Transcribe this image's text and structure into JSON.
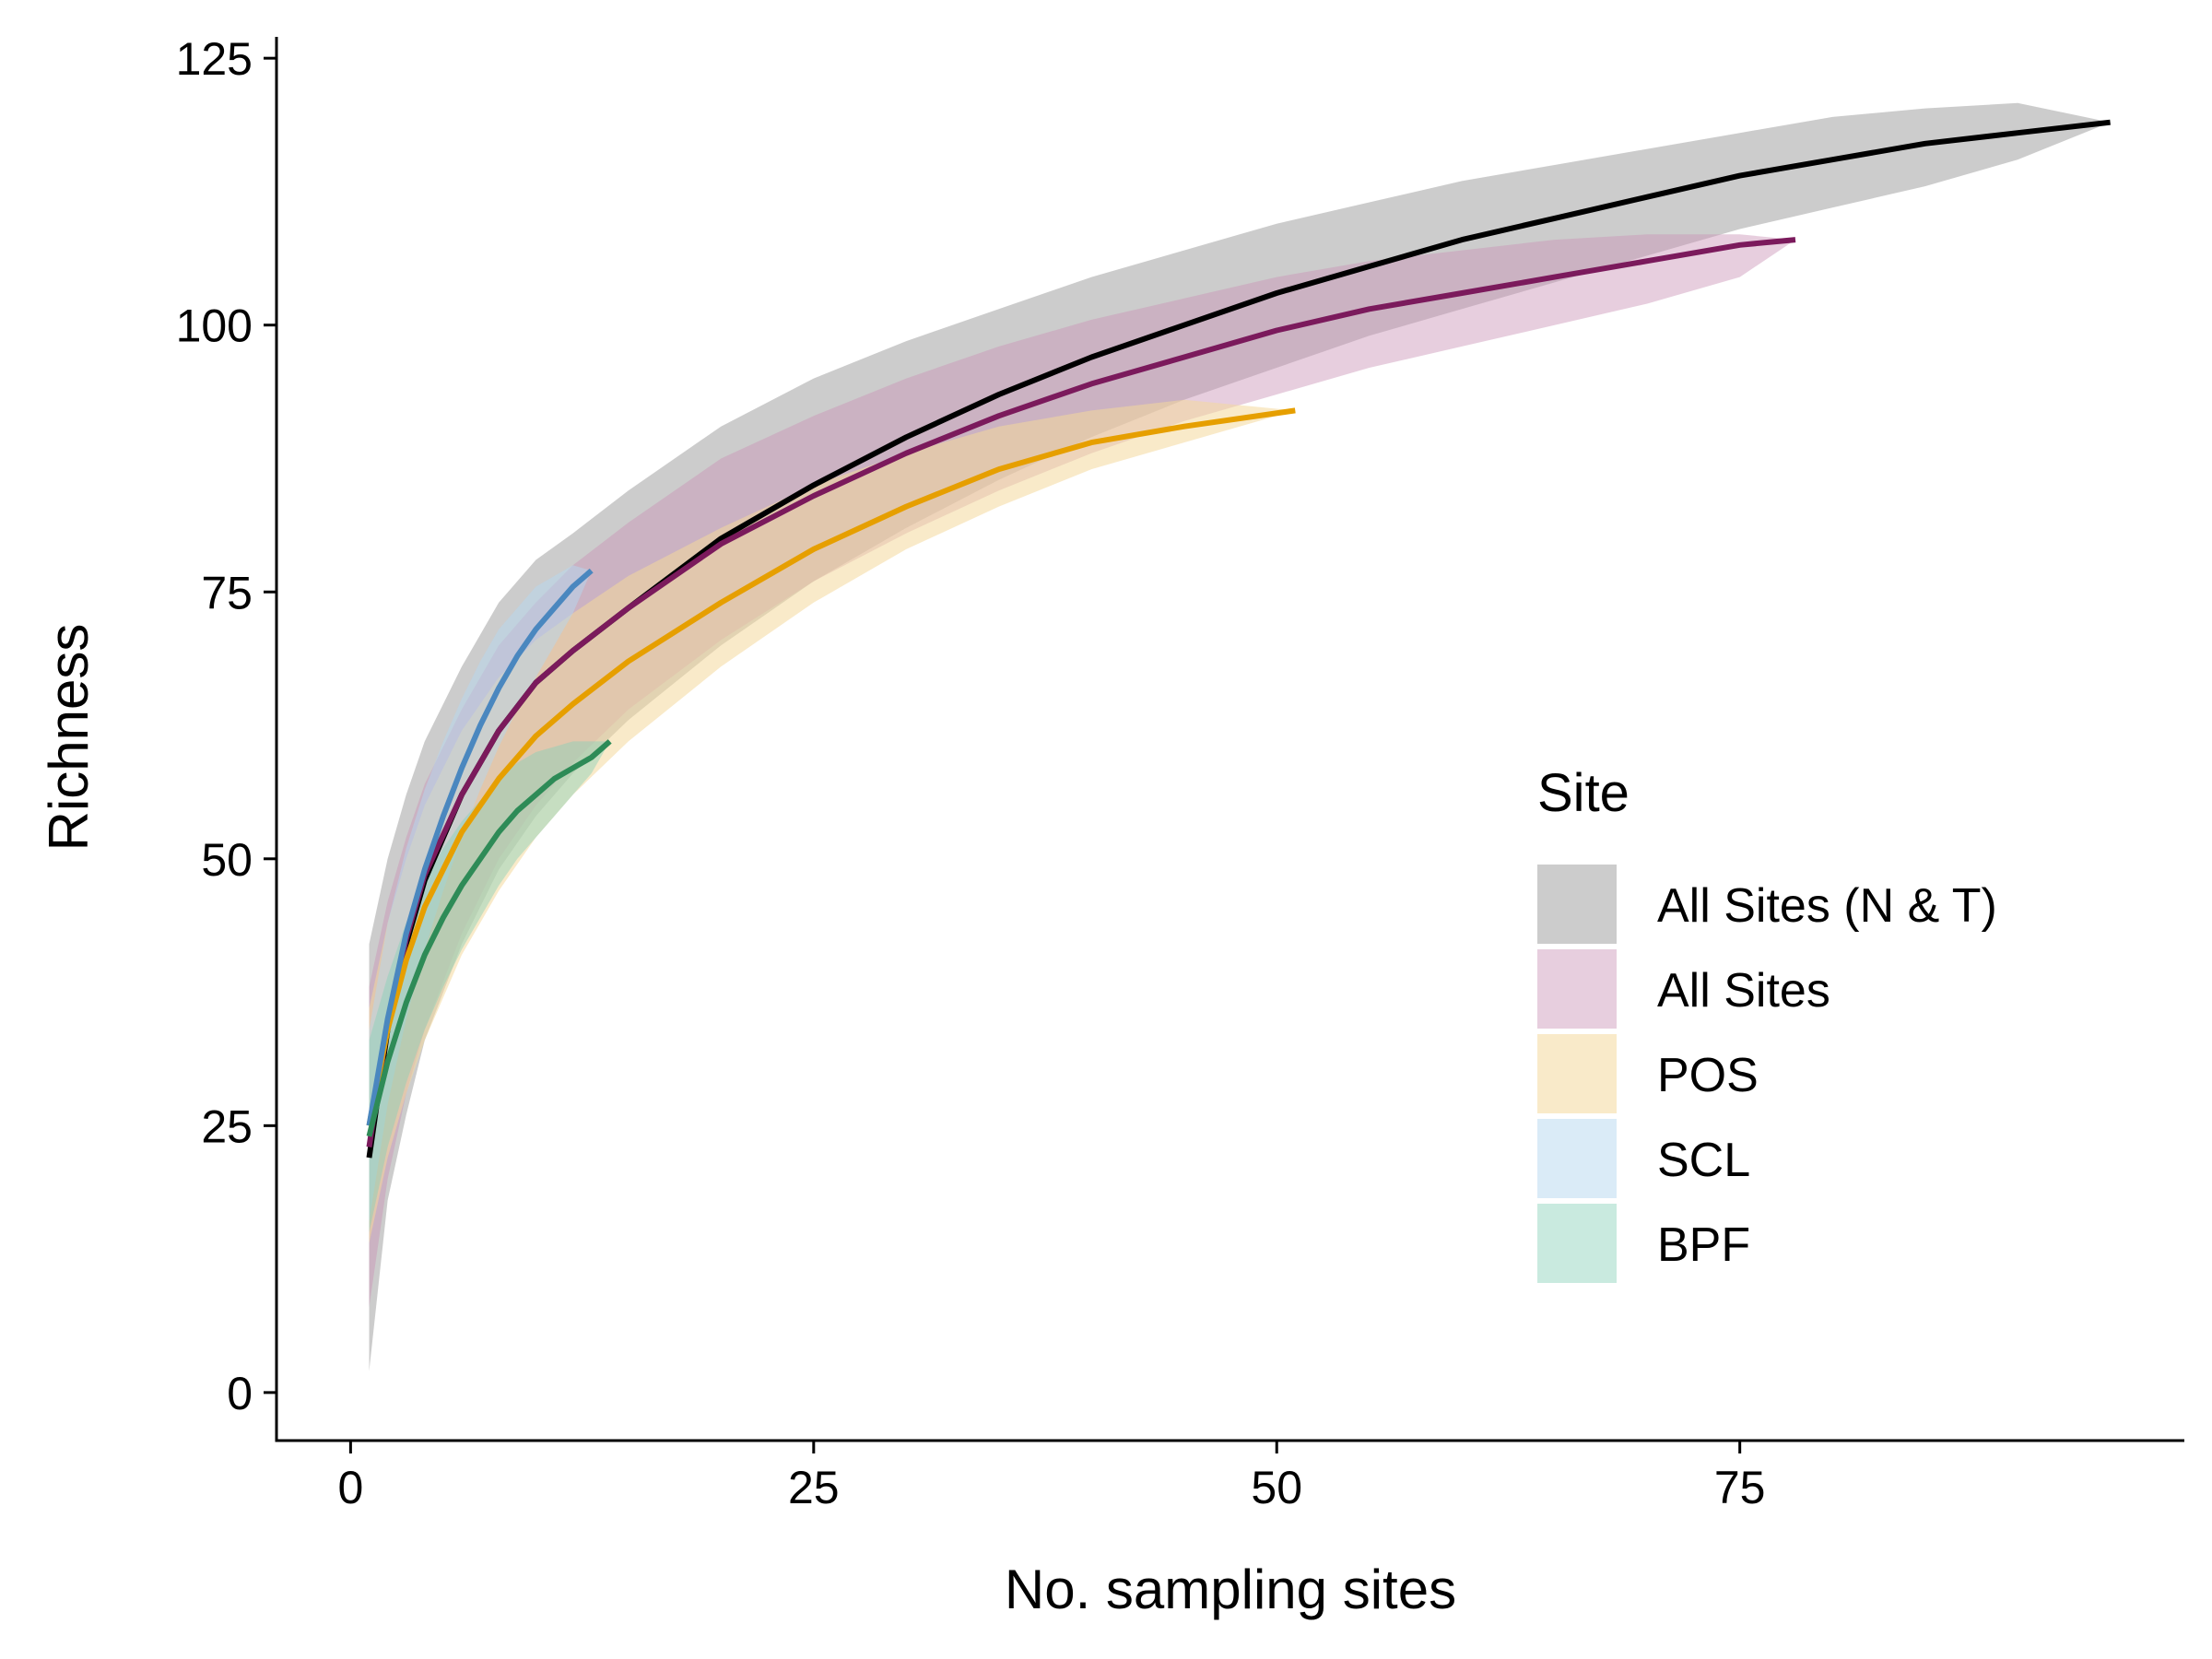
{
  "chart_data": {
    "type": "line",
    "title": "",
    "xlabel": "No. sampling sites",
    "ylabel": "Richness",
    "xlim": [
      -4,
      99
    ],
    "ylim": [
      -4.5,
      127
    ],
    "x_ticks": [
      0,
      25,
      50,
      75
    ],
    "y_ticks": [
      0,
      25,
      50,
      75,
      100,
      125
    ],
    "grid": false,
    "legend": {
      "title": "Site",
      "placement": "right"
    },
    "series": [
      {
        "name": "All Sites (N & T)",
        "color": "#000000",
        "band_color": "#999999",
        "band_opacity": 0.5,
        "x": [
          1,
          2,
          3,
          4,
          6,
          8,
          10,
          12,
          15,
          20,
          25,
          30,
          35,
          40,
          45,
          50,
          55,
          60,
          65,
          70,
          75,
          80,
          85,
          90,
          95
        ],
        "y": [
          22,
          34,
          42,
          48,
          56,
          62,
          66.5,
          69.5,
          73.5,
          80,
          85,
          89.5,
          93.5,
          97,
          100,
          103,
          105.5,
          108,
          110,
          112,
          114,
          115.5,
          117,
          118,
          119
        ],
        "lower": [
          2,
          18,
          26,
          33,
          42,
          49,
          54,
          58,
          63,
          70,
          76,
          81,
          85.5,
          89.5,
          93,
          96,
          99,
          101.5,
          104,
          106.5,
          109,
          111,
          113,
          115.5,
          119
        ],
        "upper": [
          42,
          50,
          56,
          61,
          68,
          74,
          78,
          80.5,
          84.5,
          90.5,
          95,
          98.5,
          101.5,
          104.5,
          107,
          109.5,
          111.5,
          113.5,
          115,
          116.5,
          118,
          119.5,
          120.3,
          120.8,
          119
        ]
      },
      {
        "name": "All Sites",
        "color": "#7b1a5c",
        "band_color": "#c993b5",
        "band_opacity": 0.45,
        "x": [
          1,
          2,
          3,
          4,
          6,
          8,
          10,
          12,
          15,
          20,
          25,
          30,
          35,
          40,
          45,
          50,
          55,
          60,
          65,
          70,
          75,
          78
        ],
        "y": [
          23,
          34.5,
          42.5,
          48.5,
          56,
          62,
          66.5,
          69.5,
          73.5,
          79.5,
          84,
          88,
          91.5,
          94.5,
          97,
          99.5,
          101.5,
          103,
          104.5,
          106,
          107.5,
          108
        ],
        "lower": [
          8,
          20,
          28,
          34,
          43,
          50,
          55,
          59,
          64,
          70.5,
          76,
          80.5,
          84.5,
          88,
          91,
          93.5,
          96,
          98,
          100,
          102,
          104.5,
          108
        ],
        "upper": [
          38,
          46,
          52,
          57,
          64,
          70,
          74,
          77.5,
          81.5,
          87.5,
          91.5,
          95,
          98,
          100.5,
          102.5,
          104.5,
          106,
          107,
          108,
          108.5,
          108.5,
          108
        ]
      },
      {
        "name": "POS",
        "color": "#e69f00",
        "band_color": "#f4d89d",
        "band_opacity": 0.55,
        "x": [
          1,
          2,
          3,
          4,
          6,
          8,
          10,
          12,
          15,
          20,
          25,
          30,
          35,
          40,
          45,
          51
        ],
        "y": [
          25,
          34,
          40.5,
          45.5,
          52.5,
          57.5,
          61.5,
          64.5,
          68.5,
          74,
          79,
          83,
          86.5,
          89,
          90.5,
          92
        ],
        "lower": [
          14,
          22,
          28,
          33,
          41,
          47,
          52,
          56,
          61,
          68,
          74,
          79,
          83,
          86.5,
          89,
          92
        ],
        "upper": [
          36,
          44,
          50,
          55,
          62,
          67,
          70.5,
          73,
          76.5,
          81,
          85,
          88,
          90.5,
          92,
          93,
          92
        ]
      },
      {
        "name": "SCL",
        "color": "#4a87bf",
        "band_color": "#b6d8f0",
        "band_opacity": 0.5,
        "x": [
          1,
          2,
          3,
          4,
          5,
          6,
          7,
          8,
          9,
          10,
          11,
          12,
          13
        ],
        "y": [
          25,
          35,
          43,
          49,
          54,
          58.5,
          62.5,
          66,
          69,
          71.5,
          73.5,
          75.5,
          77
        ],
        "lower": [
          16,
          27,
          35,
          41.5,
          47,
          52,
          56.5,
          60.5,
          64,
          67,
          70,
          73,
          77
        ],
        "upper": [
          34,
          44,
          51,
          56.5,
          61,
          65,
          68.5,
          71.5,
          73.5,
          75.5,
          76.5,
          77.5,
          77
        ]
      },
      {
        "name": "BPF",
        "color": "#2e8b57",
        "band_color": "#88d1b8",
        "band_opacity": 0.45,
        "x": [
          1,
          2,
          3,
          4,
          5,
          6,
          7,
          8,
          9,
          10,
          11,
          12,
          13,
          14
        ],
        "y": [
          24,
          31,
          36.5,
          41,
          44.5,
          47.5,
          50,
          52.5,
          54.5,
          56,
          57.5,
          58.5,
          59.5,
          61
        ],
        "lower": [
          15,
          23,
          29,
          34,
          38,
          41.5,
          44.5,
          47.5,
          50,
          52,
          54,
          56,
          58,
          61
        ],
        "upper": [
          33,
          39,
          44,
          48,
          51,
          53.5,
          55.5,
          57.5,
          59,
          60,
          60.5,
          61,
          61,
          61
        ]
      }
    ]
  }
}
